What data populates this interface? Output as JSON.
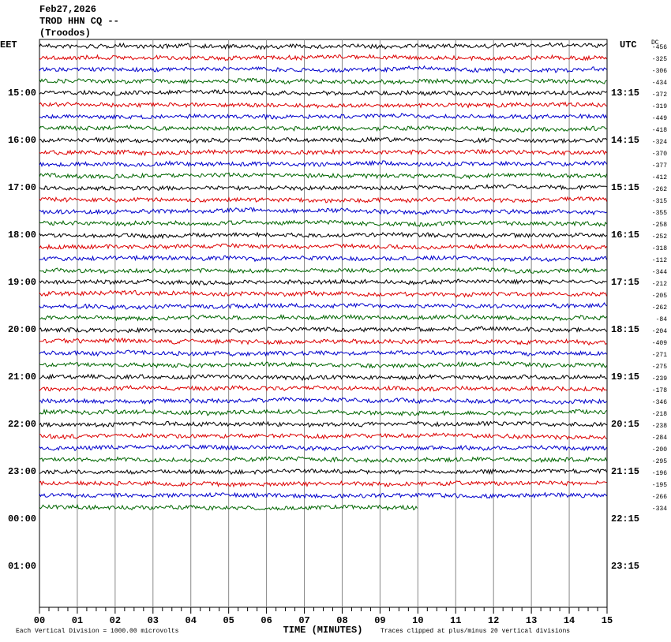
{
  "header": {
    "date": "Feb27,2026",
    "station": "TROD HHN CQ --",
    "location": "(Troodos)"
  },
  "left_axis": {
    "title": "EET",
    "labels": [
      "15:00",
      "16:00",
      "17:00",
      "18:00",
      "19:00",
      "20:00",
      "21:00",
      "22:00",
      "23:00",
      "00:00",
      "01:00"
    ]
  },
  "right_axis": {
    "title": "UTC",
    "labels": [
      "13:15",
      "14:15",
      "15:15",
      "16:15",
      "17:15",
      "18:15",
      "19:15",
      "20:15",
      "21:15",
      "22:15",
      "23:15"
    ]
  },
  "dc": {
    "title": "DC",
    "values": [
      -456,
      -325,
      -306,
      -434,
      -372,
      -319,
      -449,
      -418,
      -324,
      -370,
      -377,
      -412,
      -262,
      -315,
      -355,
      -258,
      -252,
      -318,
      -112,
      -344,
      -212,
      -205,
      -262,
      -84,
      -204,
      -409,
      -271,
      -275,
      -239,
      -178,
      -346,
      -218,
      -238,
      -284,
      -200,
      -295,
      -196,
      -195,
      -266,
      -334
    ]
  },
  "x_axis": {
    "title": "TIME (MINUTES)",
    "labels": [
      "00",
      "01",
      "02",
      "03",
      "04",
      "05",
      "06",
      "07",
      "08",
      "09",
      "10",
      "11",
      "12",
      "13",
      "14",
      "15"
    ]
  },
  "footer": {
    "scale": "Each Vertical Division = 1000.00 microvolts",
    "clip": "Traces clipped at plus/minus 20 vertical divisions"
  }
}
